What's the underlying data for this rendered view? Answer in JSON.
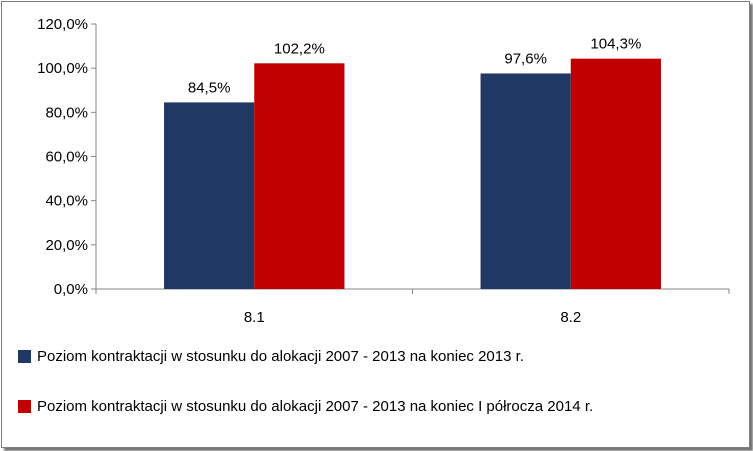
{
  "chart_data": {
    "type": "bar",
    "categories": [
      "8.1",
      "8.2"
    ],
    "series": [
      {
        "name": "Poziom kontraktacji w stosunku do alokacji 2007 - 2013 na koniec 2013 r.",
        "values": [
          84.5,
          97.6
        ],
        "labels": [
          "84,5%",
          "97,6%"
        ],
        "color": "#1f3864"
      },
      {
        "name": "Poziom kontraktacji w stosunku do alokacji 2007 - 2013 na koniec I półrocza 2014 r.",
        "values": [
          102.2,
          104.3
        ],
        "labels": [
          "102,2%",
          "104,3%"
        ],
        "color": "#c00000"
      }
    ],
    "ylim": [
      0,
      120
    ],
    "yticks": [
      0,
      20,
      40,
      60,
      80,
      100,
      120
    ],
    "ytick_labels": [
      "0,0%",
      "20,0%",
      "40,0%",
      "60,0%",
      "80,0%",
      "100,0%",
      "120,0%"
    ],
    "grid": false,
    "legend_position": "bottom"
  }
}
